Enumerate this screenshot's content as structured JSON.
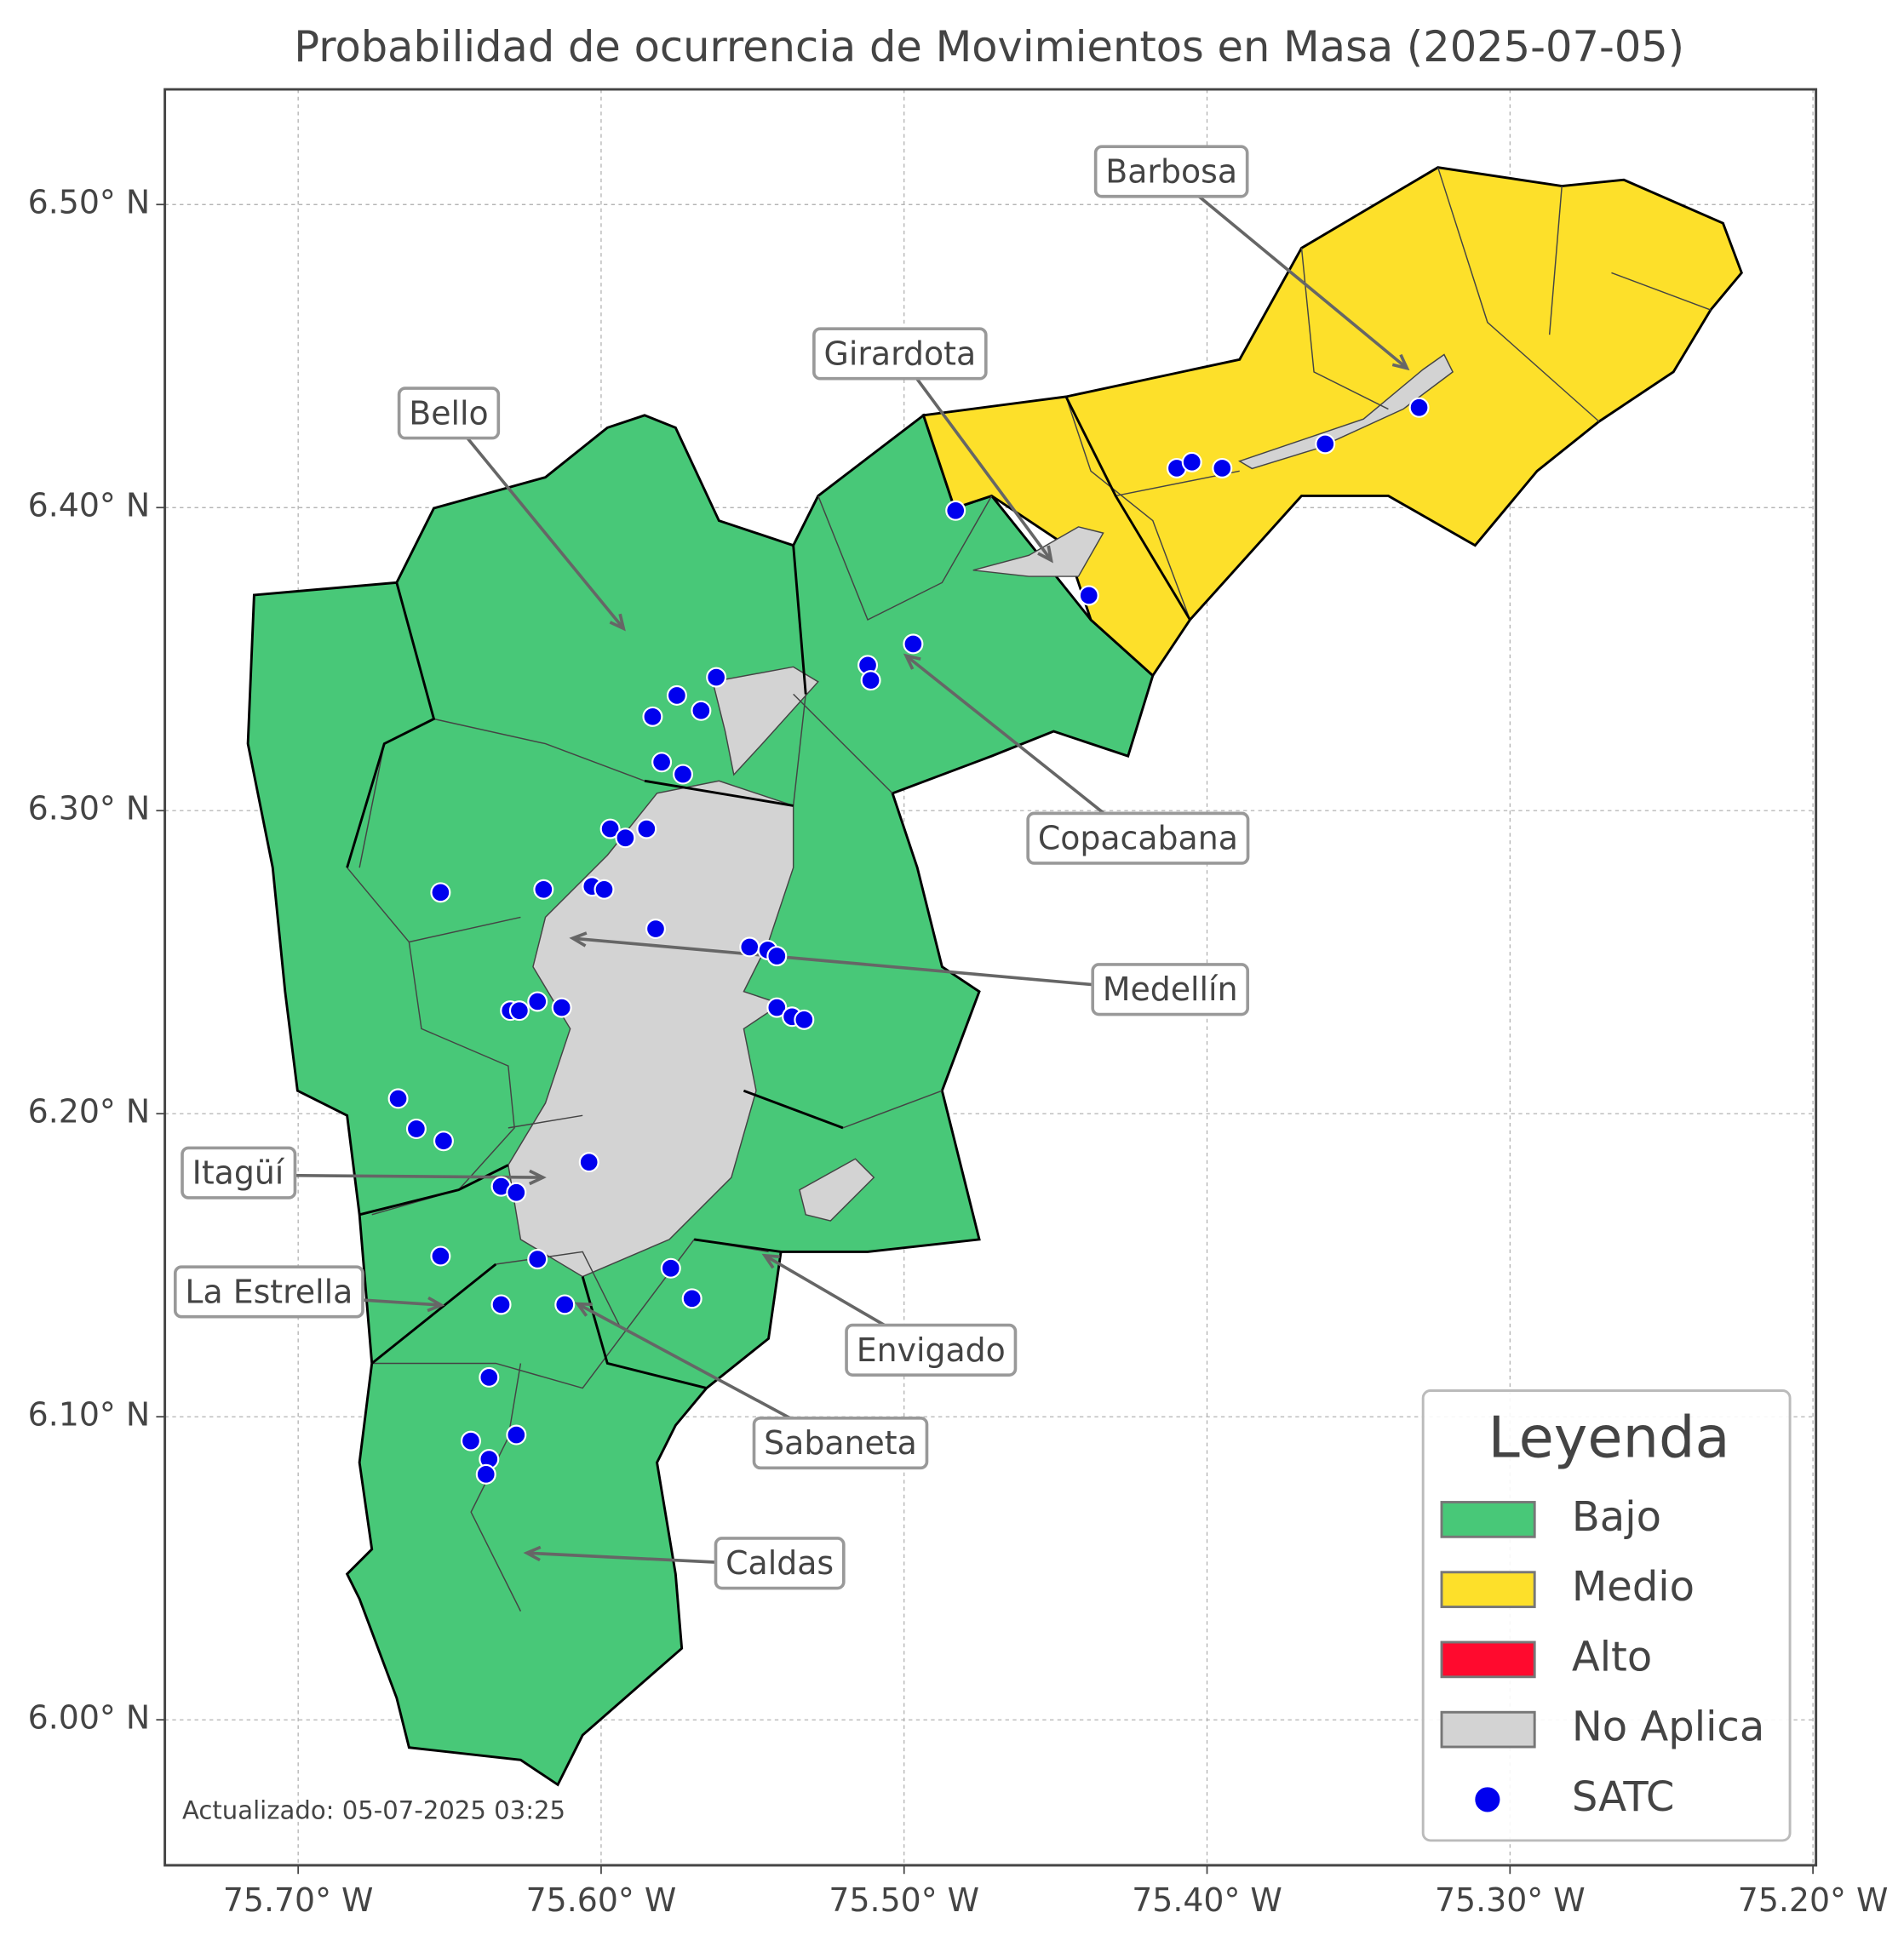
{
  "chart_data": {
    "type": "map",
    "title": "Probabilidad de ocurrencia de Movimientos en Masa (2025-07-05)",
    "note": "Actualizado: 05-07-2025 03:25",
    "xlim": [
      -75.744,
      -75.199
    ],
    "ylim": [
      5.952,
      6.538
    ],
    "xticks": [
      {
        "value": -75.7,
        "label": "75.70° W"
      },
      {
        "value": -75.6,
        "label": "75.60° W"
      },
      {
        "value": -75.5,
        "label": "75.50° W"
      },
      {
        "value": -75.4,
        "label": "75.40° W"
      },
      {
        "value": -75.3,
        "label": "75.30° W"
      },
      {
        "value": -75.2,
        "label": "75.20° W"
      }
    ],
    "yticks": [
      {
        "value": 6.0,
        "label": "6.00° N"
      },
      {
        "value": 6.1,
        "label": "6.10° N"
      },
      {
        "value": 6.2,
        "label": "6.20° N"
      },
      {
        "value": 6.3,
        "label": "6.30° N"
      },
      {
        "value": 6.4,
        "label": "6.40° N"
      },
      {
        "value": 6.5,
        "label": "6.50° N"
      }
    ],
    "grid": true,
    "annotations": [
      "Barbosa",
      "Girardota",
      "Bello",
      "Copacabana",
      "Medellín",
      "Itagüí",
      "La Estrella",
      "Envigado",
      "Sabaneta",
      "Caldas"
    ],
    "legend": {
      "title": "Leyenda",
      "entries": [
        {
          "name": "Bajo",
          "color": "#48c878"
        },
        {
          "name": "Medio",
          "color": "#fde02a"
        },
        {
          "name": "Alto",
          "color": "#ff0a2e"
        },
        {
          "name": "No Aplica",
          "color": "#d3d3d3"
        }
      ]
    },
    "series": [
      {
        "name": "SATC",
        "color": "#0000ee",
        "x": [
          -75.483,
          -75.41,
          -75.405,
          -75.395,
          -75.361,
          -75.33,
          -75.439,
          -75.497,
          -75.512,
          -75.511,
          -75.562,
          -75.575,
          -75.583,
          -75.567,
          -75.58,
          -75.573,
          -75.597,
          -75.592,
          -75.585,
          -75.653,
          -75.619,
          -75.603,
          -75.599,
          -75.582,
          -75.551,
          -75.545,
          -75.542,
          -75.542,
          -75.537,
          -75.533,
          -75.63,
          -75.627,
          -75.621,
          -75.613,
          -75.667,
          -75.661,
          -75.652,
          -75.604,
          -75.633,
          -75.628,
          -75.653,
          -75.621,
          -75.577,
          -75.57,
          -75.633,
          -75.612,
          -75.637,
          -75.643,
          -75.628,
          -75.637,
          -75.638
        ],
        "values": [
          6.399,
          6.413,
          6.415,
          6.413,
          6.421,
          6.433,
          6.371,
          6.355,
          6.348,
          6.343,
          6.344,
          6.338,
          6.331,
          6.333,
          6.316,
          6.312,
          6.294,
          6.291,
          6.294,
          6.273,
          6.274,
          6.275,
          6.274,
          6.261,
          6.255,
          6.254,
          6.252,
          6.235,
          6.232,
          6.231,
          6.234,
          6.234,
          6.237,
          6.235,
          6.205,
          6.195,
          6.191,
          6.184,
          6.176,
          6.174,
          6.153,
          6.152,
          6.149,
          6.139,
          6.137,
          6.137,
          6.113,
          6.092,
          6.094,
          6.086,
          6.081
        ]
      }
    ]
  }
}
